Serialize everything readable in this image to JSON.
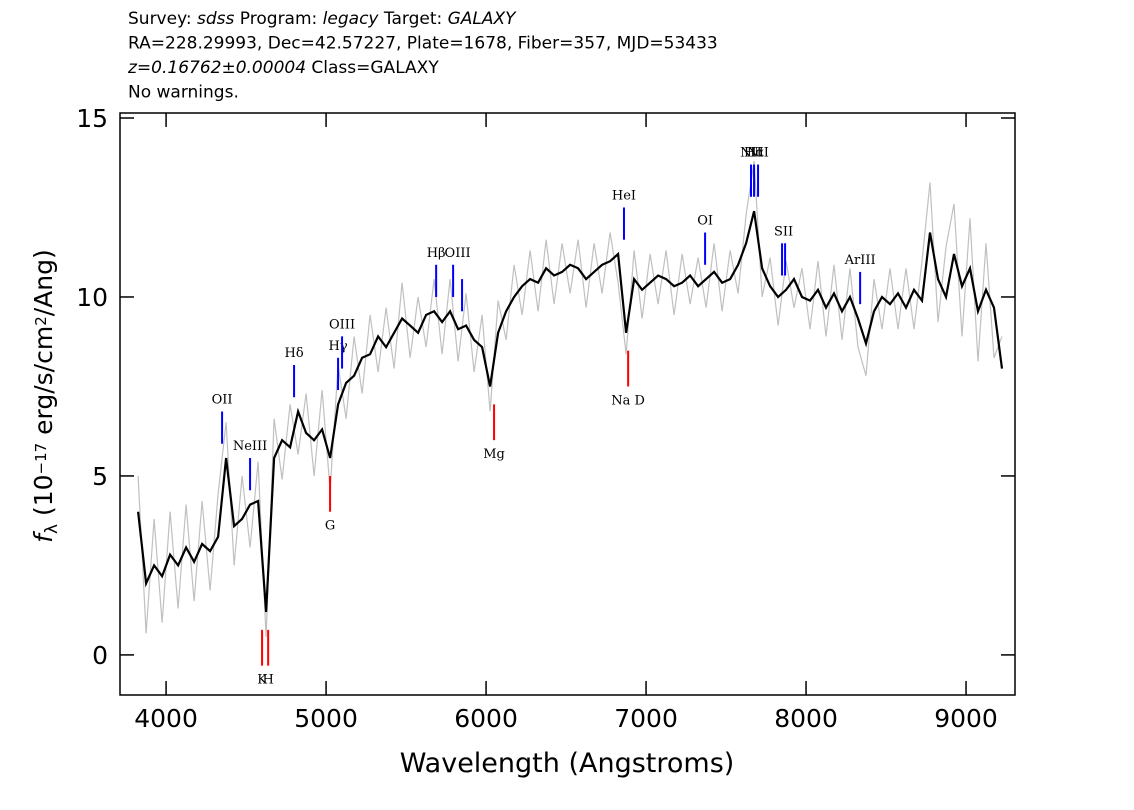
{
  "chart_data": {
    "type": "spectrum",
    "header": [
      [
        {
          "text": "Survey: "
        },
        {
          "text": "sdss",
          "italic": true
        },
        {
          "text": " Program: "
        },
        {
          "text": "legacy",
          "italic": true
        },
        {
          "text": " Target: "
        },
        {
          "text": "GALAXY",
          "italic": true
        }
      ],
      [
        {
          "text": "RA=228.29993, Dec=42.57227, Plate=1678, Fiber=357, MJD=53433"
        }
      ],
      [
        {
          "text": "z=0.16762±0.00004",
          "italic": true
        },
        {
          "text": " Class=GALAXY"
        }
      ],
      [
        {
          "text": "No warnings."
        }
      ]
    ],
    "xlabel": "Wavelength (Angstroms)",
    "ylabel": [
      "f",
      "λ",
      " (10",
      "−17",
      " erg/s/cm",
      "2",
      "/Ang)"
    ],
    "xlim": [
      3712,
      9306
    ],
    "ylim": [
      -1.12,
      15.14
    ],
    "xticks": [
      4000,
      5000,
      6000,
      7000,
      8000,
      9000
    ],
    "yticks": [
      0,
      5,
      10,
      15
    ],
    "x": [
      3825,
      3875,
      3925,
      3975,
      4025,
      4075,
      4125,
      4175,
      4225,
      4275,
      4325,
      4375,
      4425,
      4475,
      4525,
      4575,
      4625,
      4675,
      4725,
      4775,
      4825,
      4875,
      4925,
      4975,
      5025,
      5075,
      5125,
      5175,
      5225,
      5275,
      5325,
      5375,
      5425,
      5475,
      5525,
      5575,
      5625,
      5675,
      5725,
      5775,
      5825,
      5875,
      5925,
      5975,
      6025,
      6075,
      6125,
      6175,
      6225,
      6275,
      6325,
      6375,
      6425,
      6475,
      6525,
      6575,
      6625,
      6675,
      6725,
      6775,
      6825,
      6875,
      6925,
      6975,
      7025,
      7075,
      7125,
      7175,
      7225,
      7275,
      7325,
      7375,
      7425,
      7475,
      7525,
      7575,
      7625,
      7675,
      7725,
      7775,
      7825,
      7875,
      7925,
      7975,
      8025,
      8075,
      8125,
      8175,
      8225,
      8275,
      8325,
      8375,
      8425,
      8475,
      8525,
      8575,
      8625,
      8675,
      8725,
      8775,
      8825,
      8875,
      8925,
      8975,
      9025,
      9075,
      9125,
      9175,
      9225
    ],
    "series": [
      {
        "color": "#c0c0c0",
        "values": [
          5.0,
          0.6,
          3.8,
          0.9,
          4.0,
          1.3,
          4.2,
          1.5,
          4.3,
          1.8,
          4.5,
          6.5,
          2.5,
          5.0,
          3.0,
          5.4,
          0.5,
          6.6,
          4.9,
          7.0,
          5.6,
          7.3,
          5.0,
          7.4,
          4.6,
          8.1,
          6.6,
          8.9,
          7.3,
          9.5,
          7.9,
          9.7,
          8.0,
          10.4,
          8.3,
          10.0,
          8.6,
          10.5,
          8.4,
          10.5,
          8.2,
          10.1,
          7.9,
          9.5,
          6.8,
          9.9,
          8.8,
          10.9,
          9.5,
          11.3,
          9.6,
          11.6,
          9.8,
          11.5,
          10.1,
          11.6,
          9.7,
          11.5,
          10.1,
          11.8,
          10.4,
          8.4,
          11.3,
          9.4,
          11.2,
          9.8,
          11.3,
          9.5,
          11.2,
          9.8,
          11.1,
          9.7,
          11.5,
          9.6,
          11.3,
          10.1,
          12.3,
          13.8,
          10.0,
          11.1,
          9.2,
          11.0,
          9.7,
          10.8,
          9.1,
          11.0,
          8.9,
          10.9,
          8.8,
          10.8,
          8.6,
          7.8,
          10.5,
          9.1,
          10.8,
          9.1,
          10.8,
          9.1,
          11.0,
          13.2,
          9.3,
          11.4,
          12.6,
          8.9,
          12.2,
          8.2,
          11.5,
          8.3,
          8.9
        ]
      },
      {
        "color": "#000000",
        "values": [
          4.0,
          2.0,
          2.5,
          2.2,
          2.8,
          2.5,
          3.0,
          2.6,
          3.1,
          2.9,
          3.3,
          5.5,
          3.6,
          3.8,
          4.2,
          4.3,
          1.2,
          5.5,
          6.0,
          5.8,
          6.8,
          6.2,
          6.0,
          6.3,
          5.5,
          7.0,
          7.6,
          7.8,
          8.3,
          8.4,
          8.9,
          8.6,
          9.0,
          9.4,
          9.2,
          9.0,
          9.5,
          9.6,
          9.3,
          9.6,
          9.1,
          9.2,
          8.8,
          8.6,
          7.5,
          9.0,
          9.6,
          10.0,
          10.3,
          10.5,
          10.4,
          10.8,
          10.6,
          10.7,
          10.9,
          10.8,
          10.5,
          10.7,
          10.9,
          11.0,
          11.2,
          9.0,
          10.5,
          10.2,
          10.4,
          10.6,
          10.5,
          10.3,
          10.4,
          10.6,
          10.3,
          10.5,
          10.7,
          10.4,
          10.5,
          10.9,
          11.5,
          12.4,
          10.8,
          10.3,
          10.0,
          10.2,
          10.5,
          10.0,
          9.9,
          10.2,
          9.7,
          10.1,
          9.6,
          10.0,
          9.4,
          8.7,
          9.6,
          10.0,
          9.8,
          10.1,
          9.7,
          10.2,
          9.9,
          11.8,
          10.5,
          10.0,
          11.2,
          10.3,
          10.8,
          9.6,
          10.2,
          9.7,
          8.0
        ]
      }
    ],
    "features": [
      {
        "label": "OII",
        "wavelengths": [
          4350
        ],
        "color": "#0000ff",
        "side": "above"
      },
      {
        "label": "NeIII",
        "wavelengths": [
          4525
        ],
        "color": "#0000ff",
        "side": "above"
      },
      {
        "label": "Hδ",
        "wavelengths": [
          4800
        ],
        "color": "#0000ff",
        "side": "above"
      },
      {
        "label": "Hγ",
        "wavelengths": [
          5075
        ],
        "color": "#0000ff",
        "side": "above"
      },
      {
        "label": "OIII",
        "wavelengths": [
          5100
        ],
        "color": "#0000ff",
        "side": "above"
      },
      {
        "label": "Hβ",
        "wavelengths": [
          5688
        ],
        "color": "#0000ff",
        "side": "above"
      },
      {
        "label": "OIII",
        "wavelengths": [
          5794,
          5850
        ],
        "color": "#0000ff",
        "side": "above"
      },
      {
        "label": "HeI",
        "wavelengths": [
          6862
        ],
        "color": "#0000ff",
        "side": "above"
      },
      {
        "label": "OI",
        "wavelengths": [
          7369
        ],
        "color": "#0000ff",
        "side": "above"
      },
      {
        "label": "NII",
        "wavelengths": [
          7656
        ],
        "color": "#0000ff",
        "side": "above"
      },
      {
        "label": "Hα",
        "wavelengths": [
          7675
        ],
        "color": "#0000ff",
        "side": "above"
      },
      {
        "label": "NII",
        "wavelengths": [
          7700
        ],
        "color": "#0000ff",
        "side": "above"
      },
      {
        "label": "SII",
        "wavelengths": [
          7850,
          7869
        ],
        "color": "#0000ff",
        "side": "above"
      },
      {
        "label": "ArIII",
        "wavelengths": [
          8338
        ],
        "color": "#0000ff",
        "side": "above"
      },
      {
        "label": "K",
        "wavelengths": [
          4600
        ],
        "color": "#ff0000",
        "side": "below"
      },
      {
        "label": "H",
        "wavelengths": [
          4638
        ],
        "color": "#ff0000",
        "side": "below"
      },
      {
        "label": "G",
        "wavelengths": [
          5025
        ],
        "color": "#ff0000",
        "side": "below"
      },
      {
        "label": "Mg",
        "wavelengths": [
          6050
        ],
        "color": "#ff0000",
        "side": "below"
      },
      {
        "label": "Na D",
        "wavelengths": [
          6888
        ],
        "color": "#ff0000",
        "side": "below"
      }
    ]
  }
}
